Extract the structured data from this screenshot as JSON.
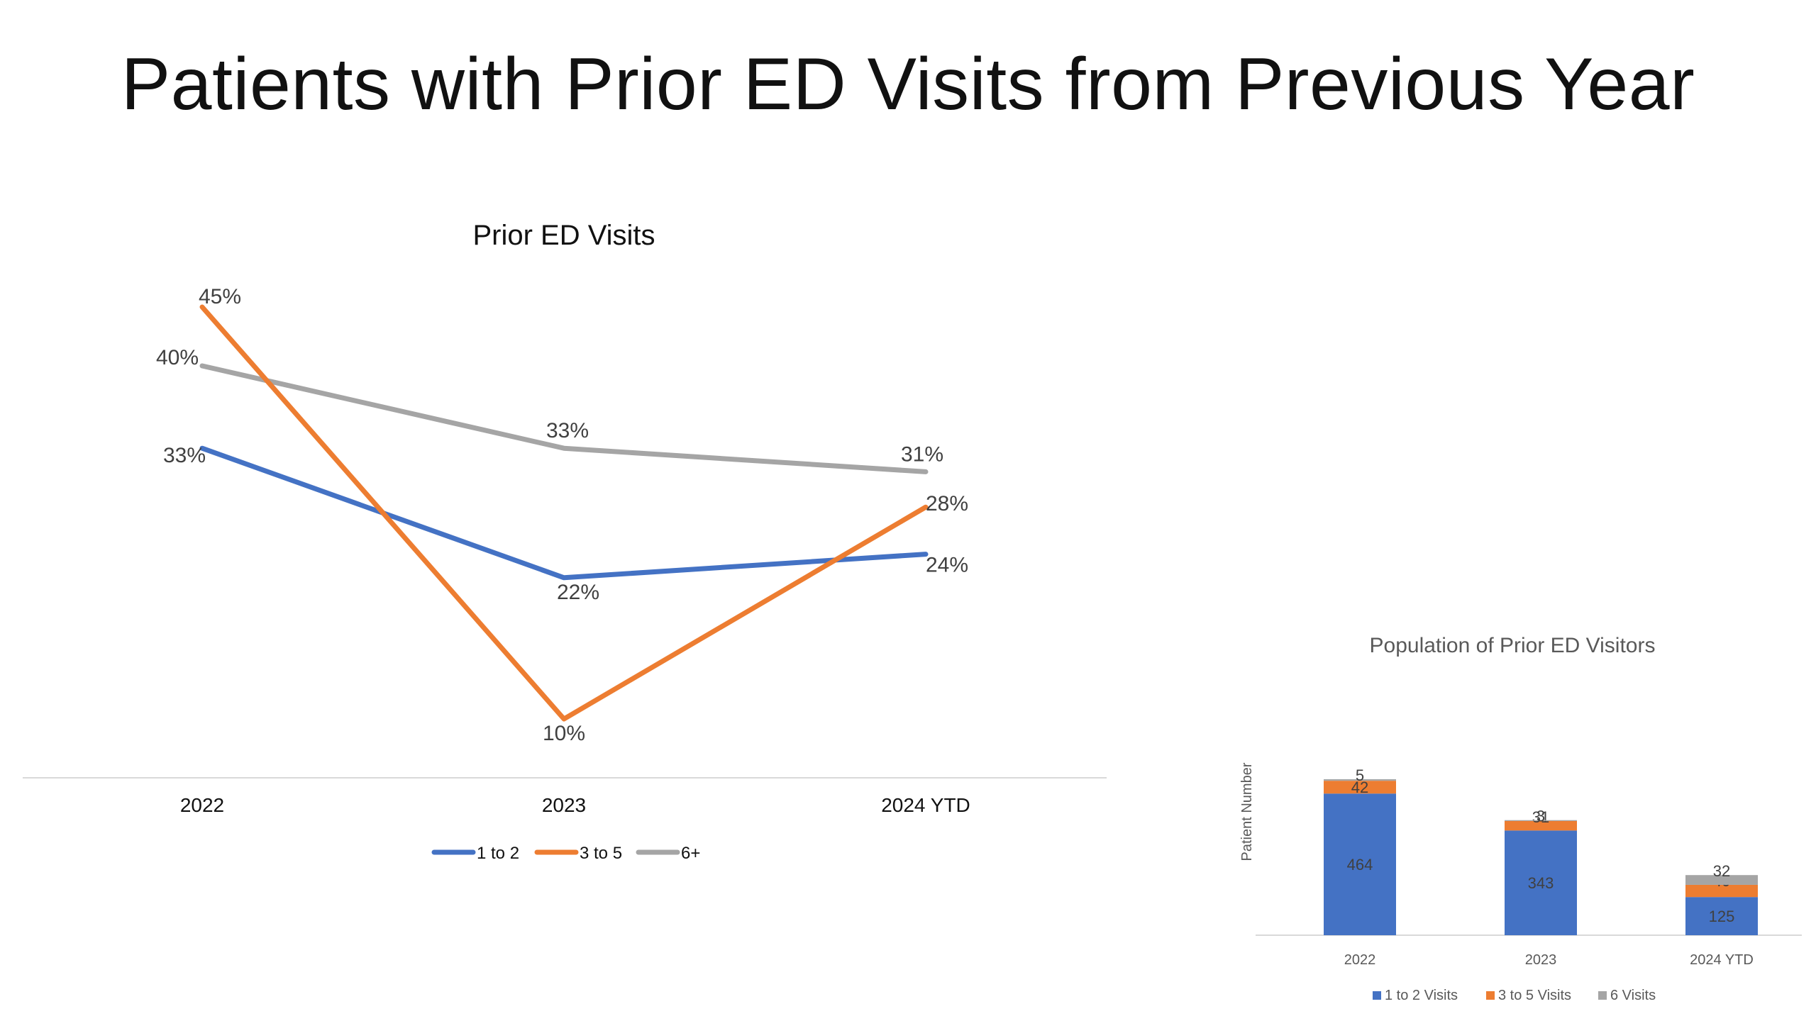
{
  "slide": {
    "title": "Patients with Prior ED Visits from Previous Year"
  },
  "chart_data": [
    {
      "type": "line",
      "title": "Prior ED Visits",
      "categories": [
        "2022",
        "2023",
        "2024 YTD"
      ],
      "series": [
        {
          "name": "1 to 2",
          "values": [
            33,
            22,
            24
          ],
          "labels": [
            "33%",
            "22%",
            "24%"
          ],
          "color": "#4472C4"
        },
        {
          "name": "3 to 5",
          "values": [
            45,
            10,
            28
          ],
          "labels": [
            "45%",
            "10%",
            "28%"
          ],
          "color": "#ED7D31"
        },
        {
          "name": "6+",
          "values": [
            40,
            33,
            31
          ],
          "labels": [
            "40%",
            "33%",
            "31%"
          ],
          "color": "#A5A5A5"
        }
      ],
      "xlabel": "",
      "ylabel": "",
      "grid": false,
      "legend": "bottom"
    },
    {
      "type": "bar",
      "stacked": true,
      "title": "Population of Prior ED Visitors",
      "categories": [
        "2022",
        "2023",
        "2024 YTD"
      ],
      "series": [
        {
          "name": "1 to 2 Visits",
          "values": [
            464,
            343,
            125
          ],
          "color": "#4472C4"
        },
        {
          "name": "3 to 5 Visits",
          "values": [
            42,
            31,
            40
          ],
          "color": "#ED7D31"
        },
        {
          "name": "6 Visits",
          "values": [
            5,
            3,
            32
          ],
          "color": "#A5A5A5"
        }
      ],
      "xlabel": "",
      "ylabel": "Patient Number",
      "grid": false,
      "legend": "bottom"
    }
  ]
}
